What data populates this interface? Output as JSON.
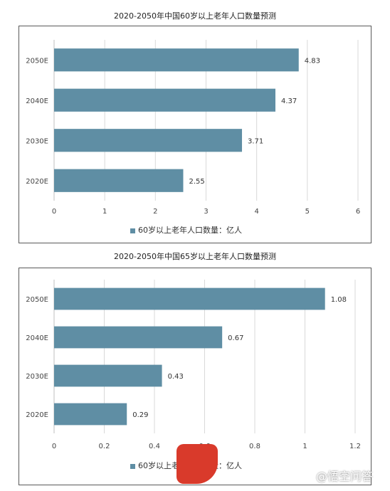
{
  "charts": [
    {
      "title": "2020-2050年中国60岁以上老年人口数量预测",
      "legend": "60岁以上老年人口数量：亿人"
    },
    {
      "title": "2020-2050年中国65岁以上老年人口数量预测",
      "legend": "60岁以上老年人口数量：亿人"
    }
  ],
  "watermark": {
    "text": "@悟空问答"
  },
  "colors": {
    "bar": "#5f8ea4",
    "grid": "#d9d9d9",
    "border": "#595959"
  },
  "chart_data": [
    {
      "type": "bar",
      "orientation": "horizontal",
      "title": "2020-2050年中国60岁以上老年人口数量预测",
      "categories": [
        "2050E",
        "2040E",
        "2030E",
        "2020E"
      ],
      "series": [
        {
          "name": "60岁以上老年人口数量：亿人",
          "values": [
            4.83,
            4.37,
            3.71,
            2.55
          ]
        }
      ],
      "xlim": [
        0,
        6
      ],
      "xticks": [
        0,
        1,
        2,
        3,
        4,
        5,
        6
      ],
      "grid": true,
      "legend_position": "bottom"
    },
    {
      "type": "bar",
      "orientation": "horizontal",
      "title": "2020-2050年中国65岁以上老年人口数量预测",
      "categories": [
        "2050E",
        "2040E",
        "2030E",
        "2020E"
      ],
      "series": [
        {
          "name": "60岁以上老年人口数量：亿人",
          "values": [
            1.08,
            0.67,
            0.43,
            0.29
          ]
        }
      ],
      "xlim": [
        0,
        1.2
      ],
      "xticks": [
        0,
        0.2,
        0.4,
        0.6,
        0.8,
        1,
        1.2
      ],
      "grid": true,
      "legend_position": "bottom"
    }
  ]
}
